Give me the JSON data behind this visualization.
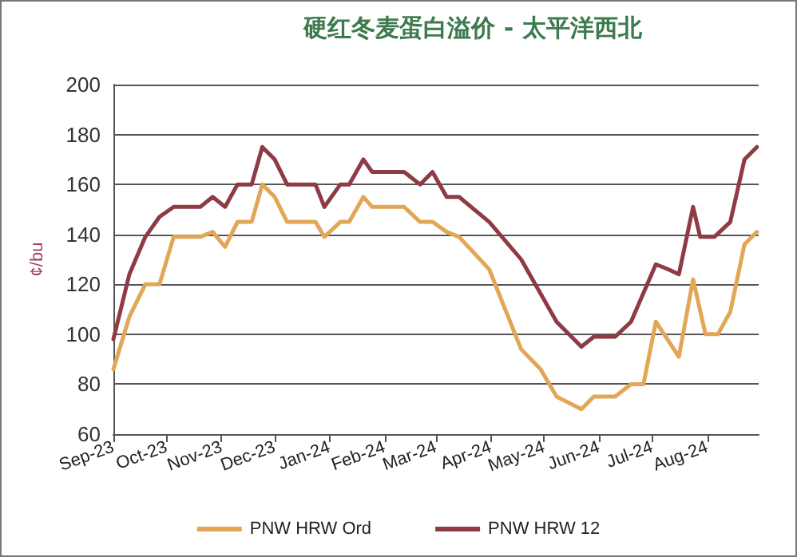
{
  "chart_data": {
    "type": "line",
    "title": "硬红冬麦蛋白溢价 - 太平洋西北",
    "ylabel": "¢/bu",
    "xlim": [
      "2023-09-01",
      "2024-08-30"
    ],
    "xticks": [
      {
        "value": "2023-09-01",
        "label": "Sep-23"
      },
      {
        "value": "2023-10-01",
        "label": "Oct-23"
      },
      {
        "value": "2023-11-01",
        "label": "Nov-23"
      },
      {
        "value": "2023-12-01",
        "label": "Dec-23"
      },
      {
        "value": "2024-01-01",
        "label": "Jan-24"
      },
      {
        "value": "2024-02-01",
        "label": "Feb-24"
      },
      {
        "value": "2024-03-01",
        "label": "Mar-24"
      },
      {
        "value": "2024-04-01",
        "label": "Apr-24"
      },
      {
        "value": "2024-05-01",
        "label": "May-24"
      },
      {
        "value": "2024-06-01",
        "label": "Jun-24"
      },
      {
        "value": "2024-07-01",
        "label": "Jul-24"
      },
      {
        "value": "2024-08-01",
        "label": "Aug-24"
      }
    ],
    "ylim": [
      60,
      200
    ],
    "yticks": [
      60,
      80,
      100,
      120,
      140,
      160,
      180,
      200
    ],
    "grid": "y",
    "legend": "bottom",
    "marker": "none",
    "line_style": "solid",
    "series": [
      {
        "name": "PNW HRW Ord",
        "color": "#e2a657",
        "x": [
          "2023-09-01",
          "2023-09-10",
          "2023-09-19",
          "2023-09-27",
          "2023-10-05",
          "2023-10-20",
          "2023-10-27",
          "2023-11-03",
          "2023-11-10",
          "2023-11-18",
          "2023-11-24",
          "2023-12-01",
          "2023-12-08",
          "2023-12-24",
          "2023-12-29",
          "2024-01-07",
          "2024-01-12",
          "2024-01-20",
          "2024-01-25",
          "2024-02-12",
          "2024-02-21",
          "2024-02-28",
          "2024-03-07",
          "2024-03-14",
          "2024-03-31",
          "2024-04-18",
          "2024-04-29",
          "2024-05-08",
          "2024-05-22",
          "2024-05-29",
          "2024-06-10",
          "2024-06-19",
          "2024-06-26",
          "2024-07-03",
          "2024-07-16",
          "2024-07-24",
          "2024-07-31",
          "2024-08-07",
          "2024-08-14",
          "2024-08-22",
          "2024-08-29"
        ],
        "values": [
          86,
          107,
          120,
          120,
          139,
          139,
          141,
          135,
          145,
          145,
          160,
          155,
          145,
          145,
          139,
          145,
          145,
          155,
          151,
          151,
          145,
          145,
          141,
          139,
          126,
          94,
          86,
          75,
          70,
          75,
          75,
          80,
          80,
          105,
          91,
          122,
          100,
          100,
          109,
          136,
          141
        ]
      },
      {
        "name": "PNW HRW 12",
        "color": "#8e3b45",
        "x": [
          "2023-09-01",
          "2023-09-10",
          "2023-09-19",
          "2023-09-27",
          "2023-10-05",
          "2023-10-20",
          "2023-10-27",
          "2023-11-03",
          "2023-11-10",
          "2023-11-18",
          "2023-11-24",
          "2023-12-01",
          "2023-12-08",
          "2023-12-24",
          "2023-12-29",
          "2024-01-07",
          "2024-01-12",
          "2024-01-20",
          "2024-01-25",
          "2024-02-12",
          "2024-02-21",
          "2024-02-28",
          "2024-03-07",
          "2024-03-14",
          "2024-03-31",
          "2024-04-18",
          "2024-05-08",
          "2024-05-22",
          "2024-05-29",
          "2024-06-10",
          "2024-06-19",
          "2024-07-03",
          "2024-07-10",
          "2024-07-16",
          "2024-07-24",
          "2024-07-28",
          "2024-08-05",
          "2024-08-14",
          "2024-08-22",
          "2024-08-29"
        ],
        "values": [
          98,
          124,
          139,
          147,
          151,
          151,
          155,
          151,
          160,
          160,
          175,
          170,
          160,
          160,
          151,
          160,
          160,
          170,
          165,
          165,
          160,
          165,
          155,
          155,
          145,
          130,
          105,
          95,
          99,
          99,
          105,
          128,
          126,
          124,
          151,
          139,
          139,
          145,
          170,
          175
        ]
      }
    ]
  }
}
